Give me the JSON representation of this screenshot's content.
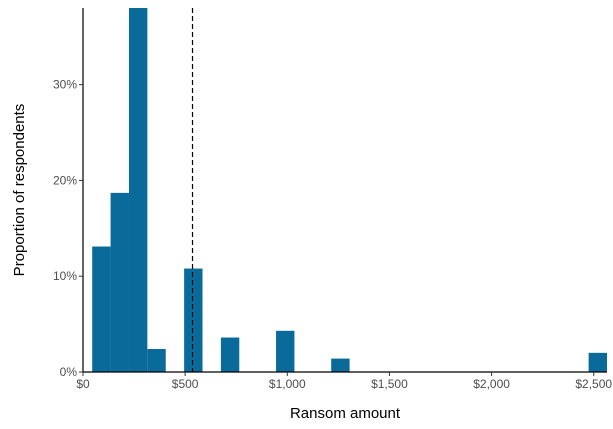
{
  "chart_data": {
    "type": "bar",
    "subtype": "histogram",
    "title": "",
    "xlabel": "Ransom amount",
    "ylabel": "Proportion of respondents",
    "bin_width": 90,
    "bins": [
      {
        "start": 45,
        "end": 135,
        "value": 0.131
      },
      {
        "start": 135,
        "end": 225,
        "value": 0.187
      },
      {
        "start": 225,
        "end": 315,
        "value": 0.385
      },
      {
        "start": 315,
        "end": 405,
        "value": 0.024
      },
      {
        "start": 495,
        "end": 585,
        "value": 0.108
      },
      {
        "start": 675,
        "end": 765,
        "value": 0.036
      },
      {
        "start": 945,
        "end": 1035,
        "value": 0.043
      },
      {
        "start": 1215,
        "end": 1305,
        "value": 0.014
      },
      {
        "start": 2475,
        "end": 2565,
        "value": 0.02
      }
    ],
    "reference_line": {
      "x": 536,
      "style": "dashed",
      "color": "#000000"
    },
    "bar_color": "#0a6b9a",
    "xlim": [
      0,
      2565
    ],
    "ylim": [
      0,
      0.38
    ],
    "x_ticks": [
      0,
      500,
      1000,
      1500,
      2000,
      2500
    ],
    "x_tick_labels": [
      "$0",
      "$500",
      "$1,000",
      "$1,500",
      "$2,000",
      "$2,500"
    ],
    "y_ticks": [
      0,
      0.1,
      0.2,
      0.3
    ],
    "y_tick_labels": [
      "0%",
      "10%",
      "20%",
      "30%"
    ],
    "grid": false,
    "legend": "none"
  }
}
